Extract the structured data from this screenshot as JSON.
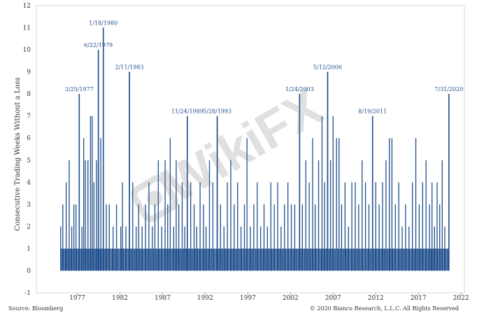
{
  "chart_data": {
    "type": "bar",
    "title": "",
    "xlabel": "",
    "ylabel": "Consecutive Trading Weeks Without a Loss",
    "ylim": [
      -1,
      12
    ],
    "xlim": [
      1972.2,
      2022.4
    ],
    "y_ticks": [
      "-1",
      "0",
      "1",
      "2",
      "3",
      "4",
      "5",
      "6",
      "7",
      "8",
      "9",
      "10",
      "11",
      "12"
    ],
    "x_ticks": [
      "1977",
      "1982",
      "1987",
      "1992",
      "1997",
      "2002",
      "2007",
      "2012",
      "2017",
      "2022"
    ],
    "bar_color": "#1f4e8c",
    "annotations": [
      {
        "label": "3/25/1977",
        "x": 1977.23,
        "y": 8
      },
      {
        "label": "6/22/1979",
        "x": 1979.47,
        "y": 10
      },
      {
        "label": "1/18/1980",
        "x": 1980.05,
        "y": 11
      },
      {
        "label": "2/11/1983",
        "x": 1983.11,
        "y": 9
      },
      {
        "label": "11/24/1989",
        "x": 1989.9,
        "y": 7
      },
      {
        "label": "5/28/1993",
        "x": 1993.41,
        "y": 7
      },
      {
        "label": "1/24/2003",
        "x": 2003.07,
        "y": 8
      },
      {
        "label": "5/12/2006",
        "x": 2006.36,
        "y": 9
      },
      {
        "label": "8/19/2011",
        "x": 2011.63,
        "y": 7
      },
      {
        "label": "7/31/2020",
        "x": 2020.58,
        "y": 8
      }
    ],
    "series": [
      {
        "x": 1975.05,
        "y": 2
      },
      {
        "x": 1975.3,
        "y": 3
      },
      {
        "x": 1975.7,
        "y": 4
      },
      {
        "x": 1976.05,
        "y": 5
      },
      {
        "x": 1976.35,
        "y": 2
      },
      {
        "x": 1976.6,
        "y": 3
      },
      {
        "x": 1976.85,
        "y": 3
      },
      {
        "x": 1977.23,
        "y": 8
      },
      {
        "x": 1977.55,
        "y": 2
      },
      {
        "x": 1977.75,
        "y": 6
      },
      {
        "x": 1977.95,
        "y": 5
      },
      {
        "x": 1978.25,
        "y": 5
      },
      {
        "x": 1978.55,
        "y": 7
      },
      {
        "x": 1978.75,
        "y": 7
      },
      {
        "x": 1978.95,
        "y": 4
      },
      {
        "x": 1979.25,
        "y": 5
      },
      {
        "x": 1979.47,
        "y": 10
      },
      {
        "x": 1979.75,
        "y": 6
      },
      {
        "x": 1980.05,
        "y": 11
      },
      {
        "x": 1980.4,
        "y": 3
      },
      {
        "x": 1980.75,
        "y": 3
      },
      {
        "x": 1981.2,
        "y": 2
      },
      {
        "x": 1981.6,
        "y": 3
      },
      {
        "x": 1982.1,
        "y": 2
      },
      {
        "x": 1982.3,
        "y": 4
      },
      {
        "x": 1982.7,
        "y": 2
      },
      {
        "x": 1983.11,
        "y": 9
      },
      {
        "x": 1983.5,
        "y": 4
      },
      {
        "x": 1983.9,
        "y": 2
      },
      {
        "x": 1984.2,
        "y": 3
      },
      {
        "x": 1984.6,
        "y": 2
      },
      {
        "x": 1985.0,
        "y": 3
      },
      {
        "x": 1985.4,
        "y": 4
      },
      {
        "x": 1985.8,
        "y": 2
      },
      {
        "x": 1986.1,
        "y": 3
      },
      {
        "x": 1986.5,
        "y": 5
      },
      {
        "x": 1986.9,
        "y": 2
      },
      {
        "x": 1987.3,
        "y": 5
      },
      {
        "x": 1987.6,
        "y": 3
      },
      {
        "x": 1987.9,
        "y": 6
      },
      {
        "x": 1988.3,
        "y": 2
      },
      {
        "x": 1988.6,
        "y": 5
      },
      {
        "x": 1988.9,
        "y": 3
      },
      {
        "x": 1989.3,
        "y": 4
      },
      {
        "x": 1989.6,
        "y": 2
      },
      {
        "x": 1989.9,
        "y": 7
      },
      {
        "x": 1990.3,
        "y": 4
      },
      {
        "x": 1990.7,
        "y": 3
      },
      {
        "x": 1991.0,
        "y": 2
      },
      {
        "x": 1991.4,
        "y": 4
      },
      {
        "x": 1991.8,
        "y": 3
      },
      {
        "x": 1992.1,
        "y": 2
      },
      {
        "x": 1992.5,
        "y": 5
      },
      {
        "x": 1992.9,
        "y": 4
      },
      {
        "x": 1993.41,
        "y": 7
      },
      {
        "x": 1993.8,
        "y": 3
      },
      {
        "x": 1994.2,
        "y": 2
      },
      {
        "x": 1994.6,
        "y": 4
      },
      {
        "x": 1995.0,
        "y": 5
      },
      {
        "x": 1995.4,
        "y": 3
      },
      {
        "x": 1995.8,
        "y": 4
      },
      {
        "x": 1996.2,
        "y": 2
      },
      {
        "x": 1996.6,
        "y": 3
      },
      {
        "x": 1996.9,
        "y": 6
      },
      {
        "x": 1997.3,
        "y": 2
      },
      {
        "x": 1997.7,
        "y": 3
      },
      {
        "x": 1998.1,
        "y": 4
      },
      {
        "x": 1998.5,
        "y": 2
      },
      {
        "x": 1998.9,
        "y": 3
      },
      {
        "x": 1999.3,
        "y": 2
      },
      {
        "x": 1999.7,
        "y": 4
      },
      {
        "x": 2000.1,
        "y": 3
      },
      {
        "x": 2000.5,
        "y": 4
      },
      {
        "x": 2000.9,
        "y": 2
      },
      {
        "x": 2001.3,
        "y": 3
      },
      {
        "x": 2001.7,
        "y": 4
      },
      {
        "x": 2002.1,
        "y": 3
      },
      {
        "x": 2002.5,
        "y": 3
      },
      {
        "x": 2003.07,
        "y": 8
      },
      {
        "x": 2003.4,
        "y": 3
      },
      {
        "x": 2003.8,
        "y": 5
      },
      {
        "x": 2004.2,
        "y": 4
      },
      {
        "x": 2004.6,
        "y": 6
      },
      {
        "x": 2004.9,
        "y": 3
      },
      {
        "x": 2005.3,
        "y": 5
      },
      {
        "x": 2005.7,
        "y": 7
      },
      {
        "x": 2006.0,
        "y": 4
      },
      {
        "x": 2006.36,
        "y": 9
      },
      {
        "x": 2006.7,
        "y": 5
      },
      {
        "x": 2007.0,
        "y": 7
      },
      {
        "x": 2007.4,
        "y": 6
      },
      {
        "x": 2007.7,
        "y": 6
      },
      {
        "x": 2008.0,
        "y": 3
      },
      {
        "x": 2008.4,
        "y": 4
      },
      {
        "x": 2008.8,
        "y": 2
      },
      {
        "x": 2009.2,
        "y": 4
      },
      {
        "x": 2009.6,
        "y": 4
      },
      {
        "x": 2010.0,
        "y": 3
      },
      {
        "x": 2010.4,
        "y": 5
      },
      {
        "x": 2010.8,
        "y": 4
      },
      {
        "x": 2011.2,
        "y": 3
      },
      {
        "x": 2011.63,
        "y": 7
      },
      {
        "x": 2012.0,
        "y": 4
      },
      {
        "x": 2012.4,
        "y": 3
      },
      {
        "x": 2012.8,
        "y": 4
      },
      {
        "x": 2013.2,
        "y": 5
      },
      {
        "x": 2013.6,
        "y": 6
      },
      {
        "x": 2013.9,
        "y": 6
      },
      {
        "x": 2014.3,
        "y": 3
      },
      {
        "x": 2014.7,
        "y": 4
      },
      {
        "x": 2015.1,
        "y": 2
      },
      {
        "x": 2015.5,
        "y": 3
      },
      {
        "x": 2015.9,
        "y": 2
      },
      {
        "x": 2016.3,
        "y": 4
      },
      {
        "x": 2016.7,
        "y": 6
      },
      {
        "x": 2017.1,
        "y": 3
      },
      {
        "x": 2017.5,
        "y": 4
      },
      {
        "x": 2017.9,
        "y": 5
      },
      {
        "x": 2018.3,
        "y": 3
      },
      {
        "x": 2018.6,
        "y": 4
      },
      {
        "x": 2018.9,
        "y": 2
      },
      {
        "x": 2019.2,
        "y": 4
      },
      {
        "x": 2019.5,
        "y": 3
      },
      {
        "x": 2019.8,
        "y": 5
      },
      {
        "x": 2020.1,
        "y": 2
      },
      {
        "x": 2020.58,
        "y": 8
      }
    ]
  },
  "watermark": "WikiFX",
  "footer": {
    "source": "Source: Bloomberg",
    "copyright": "© 2020 Bianco Research, L.L.C. All Rights Reserved"
  }
}
